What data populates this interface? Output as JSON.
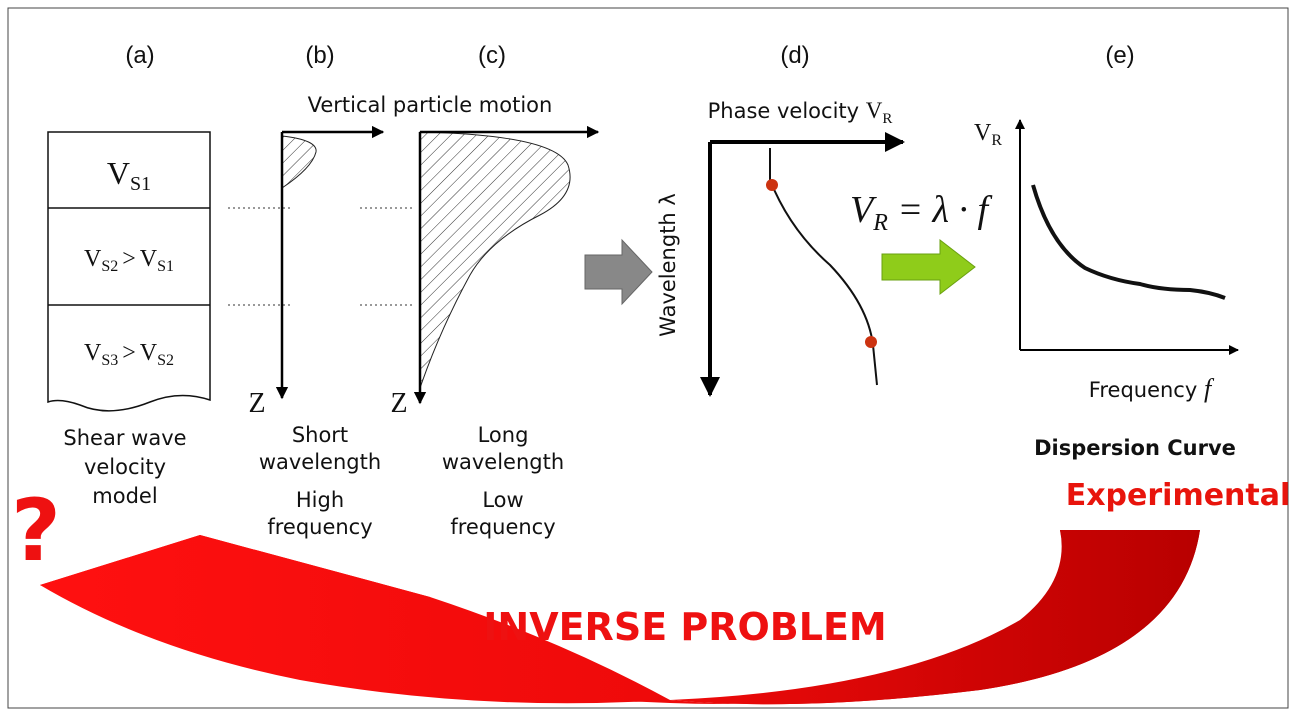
{
  "panels": [
    "(a)",
    "(b)",
    "(c)",
    "(d)",
    "(e)"
  ],
  "layers": [
    {
      "main": "V",
      "sub": "S1"
    },
    {
      "main": "V",
      "sub": "S2",
      "op": ">",
      "main2": "V",
      "sub2": "S1"
    },
    {
      "main": "V",
      "sub": "S3",
      "op": ">",
      "main2": "V",
      "sub2": "S2"
    }
  ],
  "motion_title": "Vertical particle motion",
  "depth_axis": [
    "Z",
    "Z"
  ],
  "model_caption": [
    "Shear wave",
    "velocity",
    "model"
  ],
  "short_caption": [
    "Short",
    "wavelength",
    "High",
    "frequency"
  ],
  "long_caption": [
    "Long",
    "wavelength",
    "Low",
    "frequency"
  ],
  "phase_title": {
    "text": "Phase velocity ",
    "main": "V",
    "sub": "R"
  },
  "wavelength_axis": "Wavelength λ",
  "formula": {
    "main": "V",
    "sub": "R",
    "rest": " = λ · f"
  },
  "dispersion_axis_y": {
    "main": "V",
    "sub": "R"
  },
  "dispersion_axis_x": {
    "text": "Frequency ",
    "var": "f"
  },
  "dispersion_caption": "Dispersion Curve",
  "experimental": "Experimental",
  "question": "?",
  "inverse": "INVERSE PROBLEM"
}
